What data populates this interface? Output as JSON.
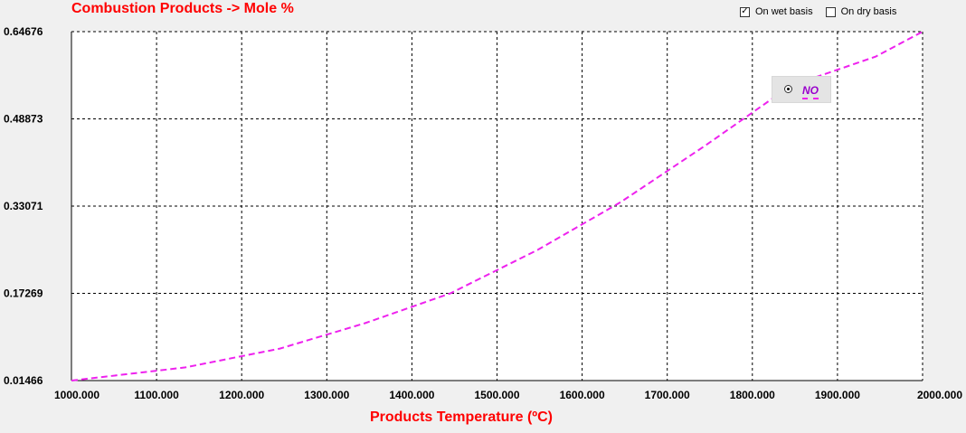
{
  "header": {
    "title": "Combustion Products -> Mole %"
  },
  "options": {
    "wet_basis": {
      "label": "On wet basis",
      "checked": true,
      "mark": "✓"
    },
    "dry_basis": {
      "label": "On dry basis",
      "checked": false,
      "mark": ""
    }
  },
  "chart_data": {
    "type": "line",
    "title": "Combustion Products -> Mole %",
    "xlabel": "Products Temperature (ºC)",
    "ylabel": "",
    "xlim": [
      1000,
      2000
    ],
    "ylim": [
      0.01466,
      0.64676
    ],
    "x_ticks": [
      "1000.000",
      "1100.000",
      "1200.000",
      "1300.000",
      "1400.000",
      "1500.000",
      "1600.000",
      "1700.000",
      "1800.000",
      "1900.000",
      "2000.000"
    ],
    "y_ticks": [
      "0.01466",
      "0.17269",
      "0.33071",
      "0.48873",
      "0.64676"
    ],
    "grid": true,
    "legend_position": "top-right",
    "series": [
      {
        "name": "NO",
        "color": "#ee22ee",
        "dash": "dashed",
        "x": [
          1000,
          1134,
          1245,
          1345,
          1445,
          1548,
          1645,
          1745,
          1845,
          1945,
          2000
        ],
        "y": [
          0.0146,
          0.0386,
          0.0726,
          0.1186,
          0.1726,
          0.2516,
          0.3376,
          0.4406,
          0.5486,
          0.6016,
          0.6467
        ]
      }
    ]
  }
}
